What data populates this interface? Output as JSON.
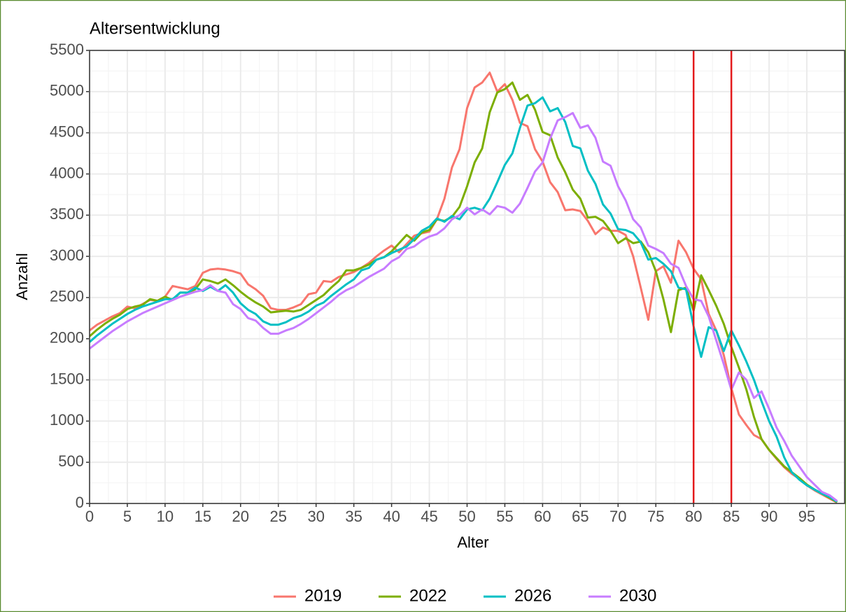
{
  "chart_data": {
    "type": "line",
    "title": "Altersentwicklung",
    "x_label": "Alter",
    "y_label": "Anzahl",
    "x": [
      0,
      1,
      2,
      3,
      4,
      5,
      6,
      7,
      8,
      9,
      10,
      11,
      12,
      13,
      14,
      15,
      16,
      17,
      18,
      19,
      20,
      21,
      22,
      23,
      24,
      25,
      26,
      27,
      28,
      29,
      30,
      31,
      32,
      33,
      34,
      35,
      36,
      37,
      38,
      39,
      40,
      41,
      42,
      43,
      44,
      45,
      46,
      47,
      48,
      49,
      50,
      51,
      52,
      53,
      54,
      55,
      56,
      57,
      58,
      59,
      60,
      61,
      62,
      63,
      64,
      65,
      66,
      67,
      68,
      69,
      70,
      71,
      72,
      73,
      74,
      75,
      76,
      77,
      78,
      79,
      80,
      81,
      82,
      83,
      84,
      85,
      86,
      87,
      88,
      89,
      90,
      91,
      92,
      93,
      94,
      95,
      96,
      97,
      98,
      99
    ],
    "series": [
      {
        "name": "2019",
        "color": "#f8766d",
        "values": [
          2100,
          2170,
          2220,
          2270,
          2310,
          2390,
          2370,
          2420,
          2470,
          2460,
          2510,
          2640,
          2620,
          2600,
          2640,
          2800,
          2840,
          2850,
          2840,
          2820,
          2790,
          2660,
          2600,
          2520,
          2370,
          2350,
          2350,
          2380,
          2420,
          2540,
          2560,
          2700,
          2690,
          2750,
          2780,
          2810,
          2860,
          2920,
          3000,
          3070,
          3130,
          3050,
          3150,
          3250,
          3280,
          3300,
          3450,
          3700,
          4080,
          4300,
          4800,
          5050,
          5110,
          5230,
          5000,
          5090,
          4900,
          4620,
          4580,
          4300,
          4150,
          3900,
          3780,
          3560,
          3570,
          3550,
          3430,
          3270,
          3350,
          3310,
          3310,
          3260,
          3000,
          2620,
          2230,
          2820,
          2880,
          2680,
          3190,
          3050,
          2850,
          2720,
          2300,
          2100,
          1800,
          1400,
          1080,
          950,
          830,
          780,
          650,
          540,
          440,
          360,
          300,
          220,
          160,
          110,
          60,
          10
        ]
      },
      {
        "name": "2022",
        "color": "#7cae00",
        "values": [
          2030,
          2110,
          2180,
          2240,
          2290,
          2360,
          2390,
          2410,
          2480,
          2460,
          2510,
          2470,
          2560,
          2560,
          2600,
          2720,
          2700,
          2670,
          2720,
          2650,
          2570,
          2500,
          2440,
          2390,
          2320,
          2330,
          2340,
          2330,
          2350,
          2410,
          2470,
          2530,
          2620,
          2700,
          2830,
          2830,
          2860,
          2900,
          2960,
          2990,
          3060,
          3160,
          3260,
          3190,
          3290,
          3320,
          3450,
          3430,
          3480,
          3600,
          3850,
          4140,
          4310,
          4750,
          4990,
          5030,
          5110,
          4900,
          4960,
          4780,
          4510,
          4470,
          4200,
          4020,
          3810,
          3700,
          3470,
          3480,
          3430,
          3310,
          3160,
          3220,
          3160,
          3180,
          3050,
          2820,
          2480,
          2080,
          2590,
          2620,
          2340,
          2770,
          2590,
          2400,
          2180,
          1900,
          1650,
          1380,
          1050,
          780,
          650,
          550,
          450,
          380,
          310,
          230,
          170,
          120,
          70,
          15
        ]
      },
      {
        "name": "2026",
        "color": "#00bfc4",
        "values": [
          1960,
          2040,
          2110,
          2180,
          2240,
          2300,
          2350,
          2390,
          2420,
          2450,
          2480,
          2480,
          2560,
          2560,
          2620,
          2580,
          2630,
          2580,
          2650,
          2560,
          2430,
          2350,
          2300,
          2210,
          2170,
          2170,
          2200,
          2250,
          2280,
          2330,
          2400,
          2440,
          2520,
          2590,
          2660,
          2720,
          2830,
          2860,
          2960,
          2990,
          3040,
          3080,
          3120,
          3210,
          3310,
          3360,
          3460,
          3420,
          3490,
          3450,
          3570,
          3590,
          3560,
          3700,
          3900,
          4110,
          4250,
          4560,
          4830,
          4860,
          4930,
          4760,
          4800,
          4630,
          4340,
          4310,
          4040,
          3880,
          3630,
          3520,
          3330,
          3320,
          3280,
          3170,
          2960,
          2980,
          2910,
          2820,
          2620,
          2600,
          2150,
          1780,
          2140,
          2100,
          1850,
          2100,
          1920,
          1720,
          1500,
          1240,
          1000,
          810,
          560,
          380,
          290,
          220,
          170,
          120,
          80,
          20
        ]
      },
      {
        "name": "2030",
        "color": "#c77cff",
        "values": [
          1880,
          1950,
          2020,
          2090,
          2150,
          2210,
          2260,
          2310,
          2350,
          2390,
          2430,
          2470,
          2510,
          2540,
          2570,
          2590,
          2650,
          2580,
          2560,
          2420,
          2360,
          2250,
          2220,
          2130,
          2060,
          2060,
          2100,
          2130,
          2180,
          2240,
          2310,
          2380,
          2450,
          2530,
          2590,
          2630,
          2690,
          2750,
          2800,
          2850,
          2940,
          2990,
          3090,
          3120,
          3190,
          3240,
          3270,
          3340,
          3450,
          3500,
          3590,
          3510,
          3570,
          3510,
          3610,
          3590,
          3530,
          3640,
          3830,
          4030,
          4140,
          4430,
          4650,
          4690,
          4740,
          4560,
          4590,
          4440,
          4150,
          4100,
          3850,
          3680,
          3450,
          3350,
          3130,
          3090,
          3040,
          2910,
          2860,
          2640,
          2480,
          2460,
          2270,
          1980,
          1690,
          1380,
          1590,
          1500,
          1280,
          1360,
          1150,
          920,
          760,
          580,
          450,
          320,
          230,
          140,
          100,
          30
        ]
      }
    ],
    "xlim": [
      0,
      100
    ],
    "ylim": [
      0,
      5500
    ],
    "xticks": [
      0,
      5,
      10,
      15,
      20,
      25,
      30,
      35,
      40,
      45,
      50,
      55,
      60,
      65,
      70,
      75,
      80,
      85,
      90,
      95
    ],
    "yticks": [
      0,
      500,
      1000,
      1500,
      2000,
      2500,
      3000,
      3500,
      4000,
      4500,
      5000,
      5500
    ],
    "grid": true,
    "vlines": [
      {
        "value": 80,
        "color": "#e41a1c"
      },
      {
        "value": 85,
        "color": "#e41a1c"
      }
    ],
    "legend": "bottom"
  }
}
